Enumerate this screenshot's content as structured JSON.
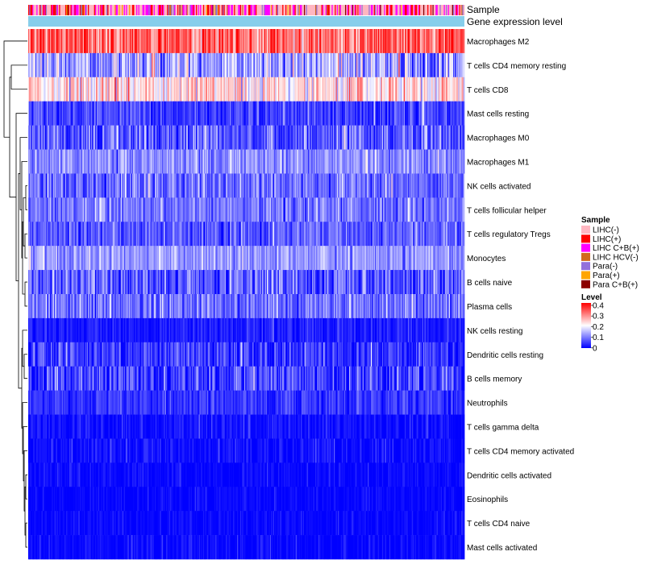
{
  "chart_data": {
    "type": "heatmap",
    "title": "",
    "annotation_tracks": [
      "Sample",
      "Gene expression level"
    ],
    "rows": [
      {
        "name": "Macrophages M2",
        "mean": 0.32,
        "sd": 0.06
      },
      {
        "name": "T cells CD4 memory resting",
        "mean": 0.13,
        "sd": 0.06
      },
      {
        "name": "T cells CD8",
        "mean": 0.22,
        "sd": 0.05
      },
      {
        "name": "Mast cells resting",
        "mean": 0.05,
        "sd": 0.035
      },
      {
        "name": "Macrophages M0",
        "mean": 0.07,
        "sd": 0.05
      },
      {
        "name": "Macrophages M1",
        "mean": 0.11,
        "sd": 0.035
      },
      {
        "name": "NK cells activated",
        "mean": 0.085,
        "sd": 0.04
      },
      {
        "name": "T cells follicular helper",
        "mean": 0.09,
        "sd": 0.035
      },
      {
        "name": "T cells regulatory  Tregs",
        "mean": 0.075,
        "sd": 0.035
      },
      {
        "name": "Monocytes",
        "mean": 0.12,
        "sd": 0.03
      },
      {
        "name": "B cells naive",
        "mean": 0.07,
        "sd": 0.05
      },
      {
        "name": "Plasma cells",
        "mean": 0.09,
        "sd": 0.04
      },
      {
        "name": "NK cells resting",
        "mean": 0.02,
        "sd": 0.02
      },
      {
        "name": "Dendritic cells resting",
        "mean": 0.045,
        "sd": 0.04
      },
      {
        "name": "B cells memory",
        "mean": 0.05,
        "sd": 0.045
      },
      {
        "name": "Neutrophils",
        "mean": 0.04,
        "sd": 0.025
      },
      {
        "name": "T cells gamma delta",
        "mean": 0.01,
        "sd": 0.02
      },
      {
        "name": "T cells CD4 memory activated",
        "mean": 0.01,
        "sd": 0.02
      },
      {
        "name": "Dendritic cells activated",
        "mean": 0.006,
        "sd": 0.015
      },
      {
        "name": "Eosinophils",
        "mean": 0.004,
        "sd": 0.012
      },
      {
        "name": "T cells CD4 naive",
        "mean": 0.004,
        "sd": 0.014
      },
      {
        "name": "Mast cells activated",
        "mean": 0.005,
        "sd": 0.015
      }
    ],
    "n_samples": 424,
    "legend_sample": {
      "title": "Sample",
      "entries": [
        {
          "label": "LIHC(-)",
          "color": "#FFB6C1"
        },
        {
          "label": "LIHC(+)",
          "color": "#FF0000"
        },
        {
          "label": "LIHC C+B(+)",
          "color": "#FF00FF"
        },
        {
          "label": "LIHC HCV(-)",
          "color": "#D2691E"
        },
        {
          "label": "Para(-)",
          "color": "#9370DB"
        },
        {
          "label": "Para(+)",
          "color": "#FFA500"
        },
        {
          "label": "Para C+B(+)",
          "color": "#8B0000"
        }
      ]
    },
    "legend_level": {
      "title": "Level",
      "range": [
        0,
        0.4
      ],
      "ticks": [
        "0.4",
        "0.3",
        "0.2",
        "0.1",
        "0"
      ],
      "colors": [
        "#0000FF",
        "#FFFFFF",
        "#FF0000"
      ]
    },
    "gene_expression_color": "#87CEEB"
  }
}
